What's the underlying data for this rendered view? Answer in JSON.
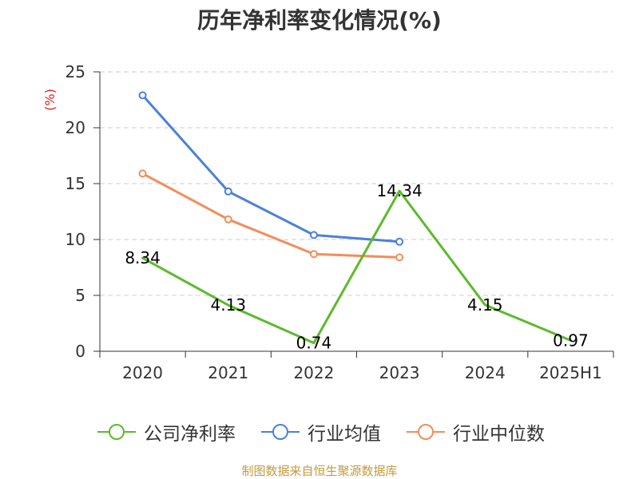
{
  "chart_data": {
    "type": "line",
    "title": "历年净利率变化情况(%)",
    "ylabel": "(%)",
    "xlabel": "",
    "categories": [
      "2020",
      "2021",
      "2022",
      "2023",
      "2024",
      "2025H1"
    ],
    "ylim": [
      0,
      25
    ],
    "yticks": [
      0,
      5,
      10,
      15,
      20,
      25
    ],
    "grid": true,
    "legend": "bottom",
    "series": [
      {
        "name": "公司净利率",
        "values": [
          8.34,
          4.13,
          0.74,
          14.34,
          4.15,
          0.97
        ],
        "color": "#5cba2c",
        "show_markers": false,
        "show_labels": true
      },
      {
        "name": "行业均值",
        "values": [
          22.9,
          14.3,
          10.4,
          9.8,
          null,
          null
        ],
        "color": "#4b80dc",
        "show_markers": true,
        "show_labels": false
      },
      {
        "name": "行业中位数",
        "values": [
          15.9,
          11.8,
          8.7,
          8.4,
          null,
          null
        ],
        "color": "#f58c5b",
        "show_markers": true,
        "show_labels": false
      }
    ]
  },
  "footer": {
    "source": "制图数据来自恒生聚源数据库"
  },
  "colors": {
    "title": "#333333",
    "ylabel": "#e02020",
    "footer": "#c49a3e",
    "axis": "#333333",
    "grid": "#cccccc"
  }
}
